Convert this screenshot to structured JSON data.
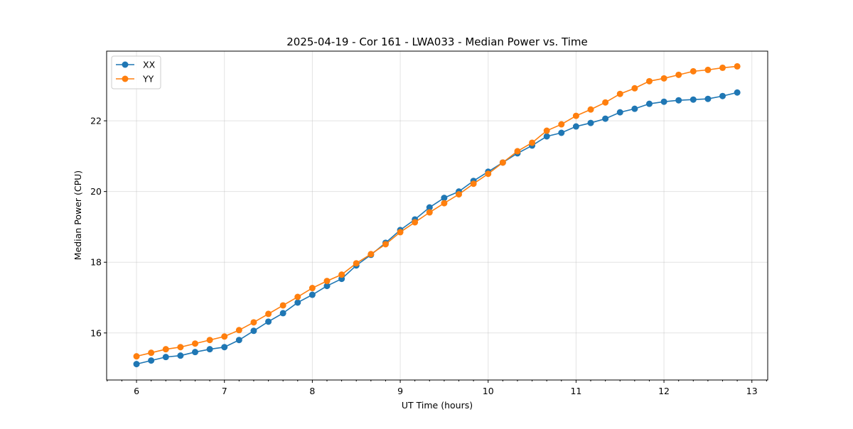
{
  "chart_data": {
    "type": "line",
    "title": "2025-04-19 - Cor 161 - LWA033 - Median Power vs. Time",
    "xlabel": "UT Time (hours)",
    "ylabel": "Median Power (CPU)",
    "xlim": [
      5.66,
      13.18
    ],
    "ylim": [
      14.67,
      23.97
    ],
    "xticks": [
      6,
      7,
      8,
      9,
      10,
      11,
      12,
      13
    ],
    "xtick_labels": [
      "6",
      "7",
      "8",
      "9",
      "10",
      "11",
      "12",
      "13"
    ],
    "yticks": [
      16,
      18,
      20,
      22
    ],
    "ytick_labels": [
      "16",
      "18",
      "20",
      "22"
    ],
    "grid": true,
    "legend_position": "top-left",
    "x_start": 6,
    "x_step_hours": 0.16667,
    "series": [
      {
        "name": "XX",
        "color": "#1f77b4",
        "values": [
          15.12,
          15.22,
          15.32,
          15.36,
          15.46,
          15.54,
          15.6,
          15.8,
          16.06,
          16.32,
          16.56,
          16.86,
          17.08,
          17.33,
          17.53,
          17.91,
          18.21,
          18.55,
          18.91,
          19.21,
          19.55,
          19.82,
          20.0,
          20.3,
          20.56,
          20.82,
          21.08,
          21.3,
          21.56,
          21.66,
          21.84,
          21.94,
          22.06,
          22.24,
          22.34,
          22.48,
          22.54,
          22.58,
          22.6,
          22.62,
          22.7,
          22.8
        ]
      },
      {
        "name": "YY",
        "color": "#ff7f0e",
        "values": [
          15.34,
          15.44,
          15.54,
          15.6,
          15.7,
          15.8,
          15.9,
          16.08,
          16.3,
          16.54,
          16.78,
          17.02,
          17.27,
          17.47,
          17.65,
          17.97,
          18.23,
          18.51,
          18.85,
          19.13,
          19.41,
          19.67,
          19.92,
          20.22,
          20.5,
          20.82,
          21.14,
          21.38,
          21.72,
          21.9,
          22.14,
          22.32,
          22.52,
          22.76,
          22.92,
          23.12,
          23.2,
          23.3,
          23.4,
          23.44,
          23.5,
          23.54
        ]
      }
    ]
  }
}
